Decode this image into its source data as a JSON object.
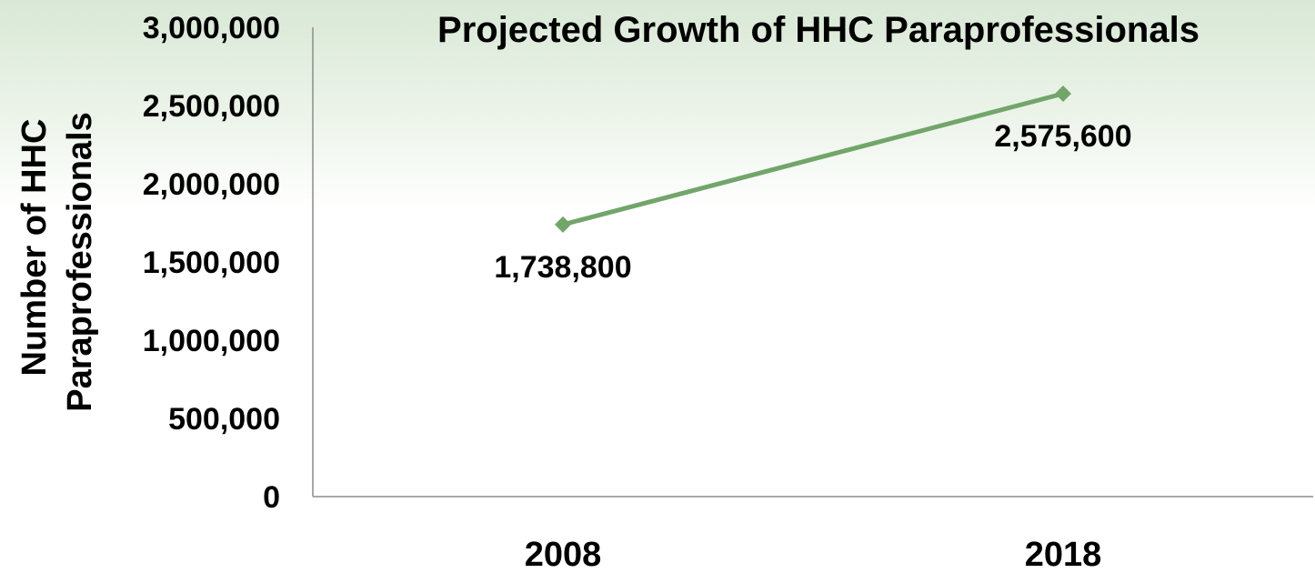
{
  "chart_data": {
    "type": "line",
    "title": "Projected Growth of HHC Paraprofessionals",
    "ylabel_lines": [
      "Number of HHC",
      "Paraprofessionals"
    ],
    "xlabel": "",
    "categories": [
      "2008",
      "2018"
    ],
    "series": [
      {
        "values": [
          1738800,
          2575600
        ],
        "data_labels": [
          "1,738,800",
          "2,575,600"
        ],
        "color": "#72a56a",
        "marker": "diamond"
      }
    ],
    "ylim": [
      0,
      3000000
    ],
    "y_ticks": [
      0,
      500000,
      1000000,
      1500000,
      2000000,
      2500000,
      3000000
    ],
    "y_tick_labels": [
      "0",
      "500,000",
      "1,000,000",
      "1,500,000",
      "2,000,000",
      "2,500,000",
      "3,000,000"
    ],
    "grid": false,
    "legend": "none"
  }
}
